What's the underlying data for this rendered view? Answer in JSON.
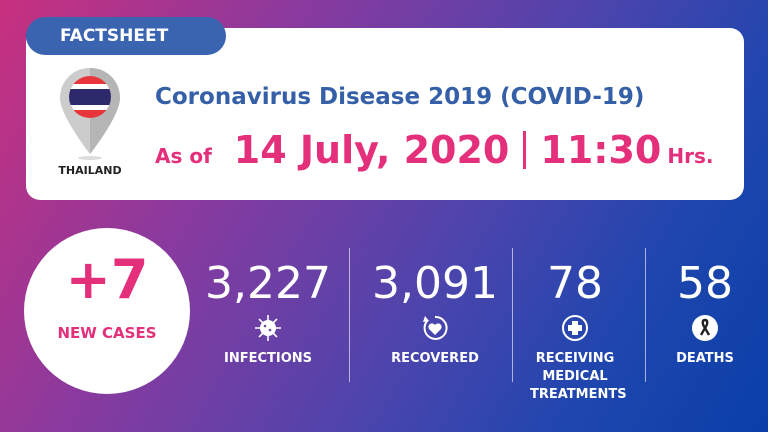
{
  "header": {
    "tab": "FACTSHEET",
    "country": "THAILAND",
    "title": "Coronavirus Disease 2019 (COVID-19)",
    "as_of": "As of",
    "date": "14 July, 2020",
    "time": "11:30",
    "hrs": "Hrs."
  },
  "new_cases": {
    "value": "+7",
    "label": "NEW CASES"
  },
  "stats": [
    {
      "value": "3,227",
      "label": "INFECTIONS",
      "icon": "virus-icon"
    },
    {
      "value": "3,091",
      "label": "RECOVERED",
      "icon": "recovered-heart-icon"
    },
    {
      "value": "78",
      "label": "RECEIVING MEDICAL TREATMENTS",
      "icon": "medical-cross-icon"
    },
    {
      "value": "58",
      "label": "DEATHS",
      "icon": "ribbon-icon"
    }
  ],
  "colors": {
    "accent": "#e42f7b",
    "blue": "#3560a8"
  }
}
